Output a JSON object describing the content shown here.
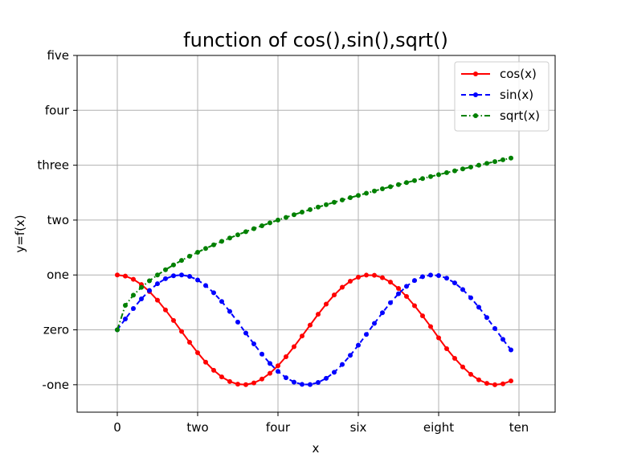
{
  "chart_data": {
    "type": "line",
    "title": "function of cos(),sin(),sqrt()",
    "xlabel": "x",
    "ylabel": "y=f(x)",
    "xlim": [
      -1,
      10.9
    ],
    "ylim": [
      -1.5,
      5
    ],
    "grid": true,
    "legend_position": "top-right",
    "xticks": [
      {
        "value": 0,
        "label": "0"
      },
      {
        "value": 2,
        "label": "two"
      },
      {
        "value": 4,
        "label": "four"
      },
      {
        "value": 6,
        "label": "six"
      },
      {
        "value": 8,
        "label": "eight"
      },
      {
        "value": 10,
        "label": "ten"
      }
    ],
    "yticks": [
      {
        "value": -1,
        "label": "-one"
      },
      {
        "value": 0,
        "label": "zero"
      },
      {
        "value": 1,
        "label": "one"
      },
      {
        "value": 2,
        "label": "two"
      },
      {
        "value": 3,
        "label": "three"
      },
      {
        "value": 4,
        "label": "four"
      },
      {
        "value": 5,
        "label": "five"
      }
    ],
    "x": [
      0,
      0.2,
      0.4,
      0.6,
      0.8,
      1.0,
      1.2,
      1.4,
      1.6,
      1.8,
      2.0,
      2.2,
      2.4,
      2.6,
      2.8,
      3.0,
      3.2,
      3.4,
      3.6,
      3.8,
      4.0,
      4.2,
      4.4,
      4.6,
      4.8,
      5.0,
      5.2,
      5.4,
      5.6,
      5.8,
      6.0,
      6.2,
      6.4,
      6.6,
      6.8,
      7.0,
      7.2,
      7.4,
      7.6,
      7.8,
      8.0,
      8.2,
      8.4,
      8.6,
      8.8,
      9.0,
      9.2,
      9.4,
      9.6,
      9.8
    ],
    "series": [
      {
        "name": "cos(x)",
        "color": "#ff0000",
        "linestyle": "solid",
        "marker": "point",
        "values": [
          1.0,
          0.98,
          0.921,
          0.825,
          0.697,
          0.54,
          0.362,
          0.17,
          -0.029,
          -0.227,
          -0.416,
          -0.589,
          -0.737,
          -0.857,
          -0.942,
          -0.99,
          -0.998,
          -0.967,
          -0.897,
          -0.791,
          -0.654,
          -0.49,
          -0.307,
          -0.112,
          0.087,
          0.284,
          0.469,
          0.635,
          0.776,
          0.886,
          0.96,
          0.997,
          0.994,
          0.951,
          0.869,
          0.754,
          0.609,
          0.44,
          0.255,
          0.06,
          -0.146,
          -0.344,
          -0.519,
          -0.677,
          -0.811,
          -0.911,
          -0.975,
          -1.0,
          -0.984,
          -0.93
        ]
      },
      {
        "name": "sin(x)",
        "color": "#0000ff",
        "linestyle": "dashed",
        "marker": "point",
        "values": [
          0.0,
          0.199,
          0.389,
          0.565,
          0.717,
          0.841,
          0.932,
          0.985,
          1.0,
          0.974,
          0.909,
          0.808,
          0.675,
          0.516,
          0.335,
          0.141,
          -0.058,
          -0.256,
          -0.443,
          -0.612,
          -0.757,
          -0.872,
          -0.952,
          -0.994,
          -0.996,
          -0.959,
          -0.883,
          -0.773,
          -0.631,
          -0.465,
          -0.279,
          -0.083,
          0.117,
          0.312,
          0.494,
          0.657,
          0.793,
          0.899,
          0.968,
          0.998,
          0.989,
          0.941,
          0.855,
          0.734,
          0.585,
          0.412,
          0.223,
          0.025,
          -0.174,
          -0.366
        ]
      },
      {
        "name": "sqrt(x)",
        "color": "#008000",
        "linestyle": "dashdot",
        "marker": "point",
        "values": [
          0.0,
          0.447,
          0.632,
          0.775,
          0.894,
          1.0,
          1.095,
          1.183,
          1.265,
          1.342,
          1.414,
          1.483,
          1.549,
          1.612,
          1.673,
          1.732,
          1.789,
          1.844,
          1.897,
          1.949,
          2.0,
          2.049,
          2.098,
          2.145,
          2.191,
          2.236,
          2.28,
          2.324,
          2.366,
          2.408,
          2.449,
          2.49,
          2.53,
          2.569,
          2.608,
          2.646,
          2.683,
          2.72,
          2.757,
          2.793,
          2.828,
          2.864,
          2.898,
          2.933,
          2.966,
          3.0,
          3.033,
          3.066,
          3.098,
          3.13
        ]
      }
    ]
  }
}
